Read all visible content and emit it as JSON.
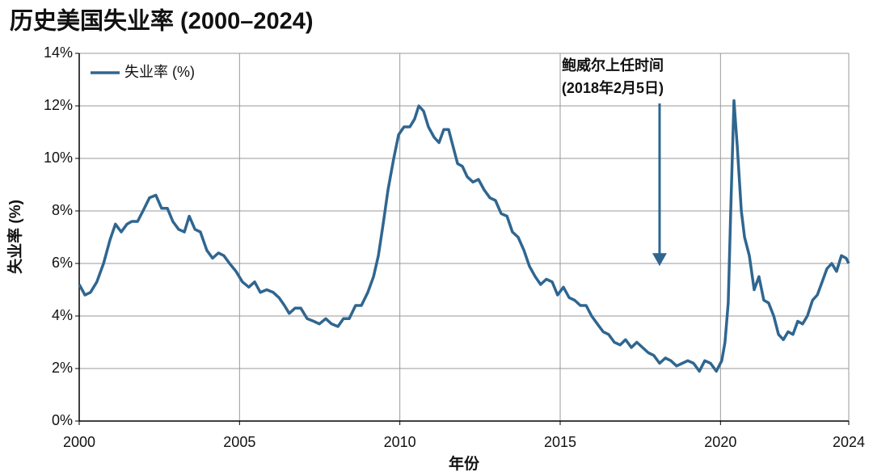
{
  "chart_data": {
    "type": "line",
    "title": "历史美国失业率 (2000–2024)",
    "x_label": "年份",
    "y_label": "失业率 (%)",
    "grid": true,
    "legend": "upper left",
    "xlim": [
      2000,
      2024
    ],
    "xticks": [
      2000,
      2005,
      2010,
      2015,
      2020,
      2024
    ],
    "ylim": [
      0,
      14
    ],
    "yticks": [
      {
        "value": 0,
        "label": "0%"
      },
      {
        "value": 2,
        "label": "2%"
      },
      {
        "value": 4,
        "label": "4%"
      },
      {
        "value": 6,
        "label": "6%"
      },
      {
        "value": 8,
        "label": "8%"
      },
      {
        "value": 10,
        "label": "10%"
      },
      {
        "value": 12,
        "label": "12%"
      },
      {
        "value": 14,
        "label": "14%"
      }
    ],
    "annotation": {
      "text": [
        "鲍威尔上任时间",
        "(2018年2月5日)"
      ],
      "x": 2018.1,
      "y": 5.9
    },
    "x": [
      2000,
      2000.18,
      2000.35,
      2000.55,
      2000.76,
      2000.96,
      2001.13,
      2001.31,
      2001.49,
      2001.64,
      2001.82,
      2001.99,
      2002.19,
      2002.39,
      2002.57,
      2002.75,
      2002.92,
      2003.1,
      2003.28,
      2003.43,
      2003.61,
      2003.78,
      2003.98,
      2004.16,
      2004.34,
      2004.51,
      2004.69,
      2004.89,
      2005.09,
      2005.29,
      2005.47,
      2005.65,
      2005.85,
      2006.05,
      2006.23,
      2006.4,
      2006.55,
      2006.73,
      2006.91,
      2007.11,
      2007.31,
      2007.49,
      2007.69,
      2007.87,
      2008.07,
      2008.24,
      2008.42,
      2008.62,
      2008.8,
      2009.0,
      2009.18,
      2009.33,
      2009.48,
      2009.63,
      2009.81,
      2009.96,
      2010.13,
      2010.31,
      2010.46,
      2010.59,
      2010.74,
      2010.89,
      2011.07,
      2011.22,
      2011.37,
      2011.52,
      2011.65,
      2011.8,
      2011.95,
      2012.1,
      2012.28,
      2012.45,
      2012.63,
      2012.81,
      2012.98,
      2013.16,
      2013.34,
      2013.51,
      2013.69,
      2013.87,
      2014.04,
      2014.22,
      2014.39,
      2014.57,
      2014.75,
      2014.92,
      2015.1,
      2015.28,
      2015.45,
      2015.63,
      2015.81,
      2015.98,
      2016.16,
      2016.34,
      2016.51,
      2016.69,
      2016.87,
      2017.04,
      2017.22,
      2017.39,
      2017.57,
      2017.75,
      2017.92,
      2018.1,
      2018.28,
      2018.45,
      2018.63,
      2018.81,
      2018.98,
      2019.16,
      2019.34,
      2019.51,
      2019.69,
      2019.87,
      2020.04,
      2020.14,
      2020.24,
      2020.32,
      2020.42,
      2020.52,
      2020.65,
      2020.75,
      2020.9,
      2021.05,
      2021.2,
      2021.35,
      2021.5,
      2021.66,
      2021.81,
      2021.96,
      2022.11,
      2022.26,
      2022.41,
      2022.56,
      2022.71,
      2022.87,
      2023.02,
      2023.17,
      2023.32,
      2023.47,
      2023.62,
      2023.77,
      2023.92,
      2024.0
    ],
    "series": [
      {
        "name": "失业率 (%)",
        "color": "#2f6690",
        "values": [
          5.2,
          4.8,
          4.9,
          5.3,
          6.0,
          6.9,
          7.5,
          7.2,
          7.5,
          7.6,
          7.6,
          8.0,
          8.5,
          8.6,
          8.1,
          8.1,
          7.6,
          7.3,
          7.2,
          7.8,
          7.3,
          7.2,
          6.5,
          6.2,
          6.4,
          6.3,
          6.0,
          5.7,
          5.3,
          5.1,
          5.3,
          4.9,
          5.0,
          4.9,
          4.7,
          4.4,
          4.1,
          4.3,
          4.3,
          3.9,
          3.8,
          3.7,
          3.9,
          3.7,
          3.6,
          3.9,
          3.9,
          4.4,
          4.4,
          4.9,
          5.5,
          6.3,
          7.5,
          8.8,
          10.0,
          10.9,
          11.2,
          11.2,
          11.5,
          12.0,
          11.8,
          11.2,
          10.8,
          10.6,
          11.1,
          11.1,
          10.5,
          9.8,
          9.7,
          9.3,
          9.1,
          9.2,
          8.8,
          8.5,
          8.4,
          7.9,
          7.8,
          7.2,
          7.0,
          6.5,
          5.9,
          5.5,
          5.2,
          5.4,
          5.3,
          4.8,
          5.1,
          4.7,
          4.6,
          4.4,
          4.4,
          4.0,
          3.7,
          3.4,
          3.3,
          3.0,
          2.9,
          3.1,
          2.8,
          3.0,
          2.8,
          2.6,
          2.5,
          2.2,
          2.4,
          2.3,
          2.1,
          2.2,
          2.3,
          2.2,
          1.9,
          2.3,
          2.2,
          1.9,
          2.3,
          3.0,
          4.5,
          8.0,
          12.2,
          10.5,
          8.0,
          7.0,
          6.3,
          5.0,
          5.5,
          4.6,
          4.5,
          4.0,
          3.3,
          3.1,
          3.4,
          3.3,
          3.8,
          3.7,
          4.0,
          4.6,
          4.8,
          5.3,
          5.8,
          6.0,
          5.7,
          6.3,
          6.2,
          6.0
        ]
      }
    ]
  }
}
